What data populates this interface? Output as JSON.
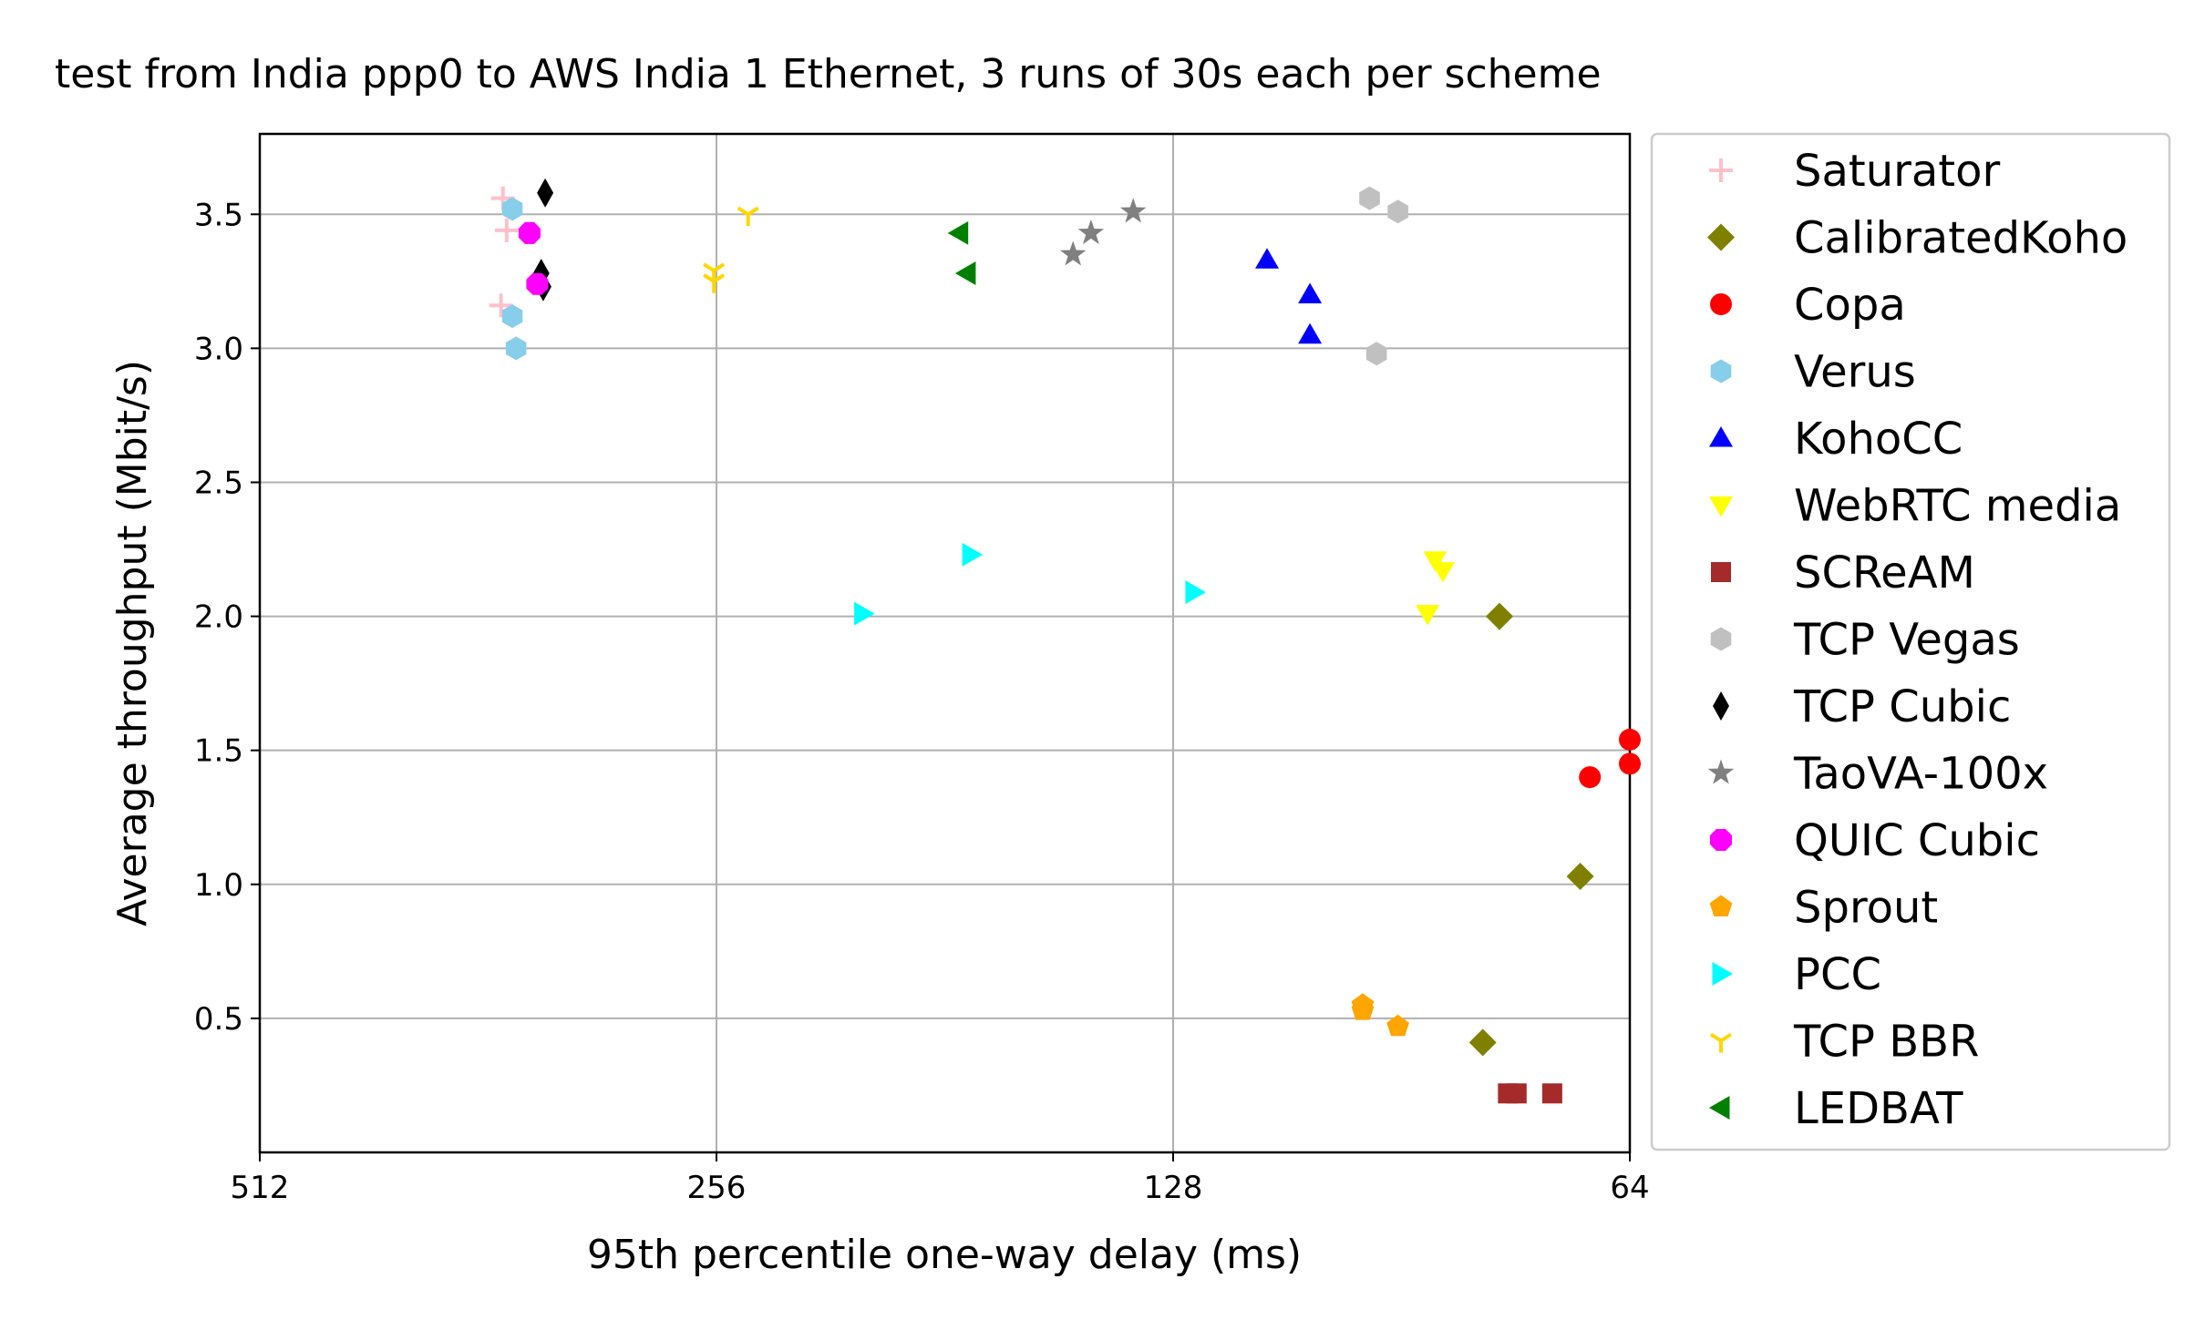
{
  "chart_data": {
    "type": "scatter",
    "title": "test from India ppp0 to AWS India 1 Ethernet, 3 runs of 30s each per scheme",
    "xlabel": "95th percentile one-way delay (ms)",
    "ylabel": "Average throughput (Mbit/s)",
    "x_scale": "log2",
    "x_inverted": true,
    "xlim": [
      512,
      64
    ],
    "ylim": [
      0,
      3.8
    ],
    "x_ticks": [
      512,
      256,
      128,
      64
    ],
    "x_tick_labels": [
      "512",
      "256",
      "128",
      "64"
    ],
    "y_ticks": [
      0.5,
      1.0,
      1.5,
      2.0,
      2.5,
      3.0,
      3.5
    ],
    "y_tick_labels": [
      "0.5",
      "1.0",
      "1.5",
      "2.0",
      "2.5",
      "3.0",
      "3.5"
    ],
    "grid": true,
    "legend_position": "outside right",
    "series": [
      {
        "name": "Saturator",
        "marker": "plus",
        "color": "#ffc0cb",
        "points": [
          [
            354,
            3.56
          ],
          [
            352,
            3.44
          ],
          [
            355,
            3.16
          ]
        ]
      },
      {
        "name": "CalibratedKoho",
        "marker": "diamond",
        "color": "#808000",
        "points": [
          [
            78,
            2.0
          ],
          [
            69,
            1.03
          ],
          [
            80,
            0.41
          ]
        ]
      },
      {
        "name": "Copa",
        "marker": "circle",
        "color": "#ff0000",
        "points": [
          [
            64,
            1.54
          ],
          [
            64,
            1.45
          ],
          [
            68,
            1.4
          ]
        ]
      },
      {
        "name": "Verus",
        "marker": "hexagon",
        "color": "#87ceeb",
        "points": [
          [
            349,
            3.52
          ],
          [
            349,
            3.12
          ],
          [
            347,
            3.0
          ]
        ]
      },
      {
        "name": "KohoCC",
        "marker": "triangle-up",
        "color": "#0000ff",
        "points": [
          [
            111,
            3.33
          ],
          [
            104,
            3.2
          ],
          [
            104,
            3.05
          ]
        ]
      },
      {
        "name": "WebRTC media",
        "marker": "triangle-down",
        "color": "#ffff00",
        "points": [
          [
            86,
            2.21
          ],
          [
            85,
            2.17
          ],
          [
            87,
            2.01
          ]
        ]
      },
      {
        "name": "SCReAM",
        "marker": "square",
        "color": "#a52a2a",
        "points": [
          [
            77,
            0.22
          ],
          [
            76,
            0.22
          ],
          [
            72,
            0.22
          ]
        ]
      },
      {
        "name": "TCP Vegas",
        "marker": "hexagon",
        "color": "#c0c0c0",
        "points": [
          [
            95,
            3.56
          ],
          [
            91,
            3.51
          ],
          [
            94,
            2.98
          ]
        ]
      },
      {
        "name": "TCP Cubic",
        "marker": "thin-diamond",
        "color": "#000000",
        "points": [
          [
            332,
            3.58
          ],
          [
            334,
            3.28
          ],
          [
            333,
            3.23
          ]
        ]
      },
      {
        "name": "TaoVA-100x",
        "marker": "star",
        "color": "#808080",
        "points": [
          [
            136,
            3.51
          ],
          [
            145,
            3.43
          ],
          [
            149,
            3.35
          ]
        ]
      },
      {
        "name": "QUIC Cubic",
        "marker": "octagon",
        "color": "#ff00ff",
        "points": [
          [
            340,
            3.43
          ],
          [
            336,
            3.24
          ]
        ]
      },
      {
        "name": "Sprout",
        "marker": "pentagon",
        "color": "#ffa500",
        "points": [
          [
            96,
            0.55
          ],
          [
            96,
            0.53
          ],
          [
            91,
            0.47
          ]
        ]
      },
      {
        "name": "PCC",
        "marker": "triangle-right",
        "color": "#00ffff",
        "points": [
          [
            205,
            2.01
          ],
          [
            174,
            2.23
          ],
          [
            124,
            2.09
          ]
        ]
      },
      {
        "name": "TCP BBR",
        "marker": "tri-down",
        "color": "#ffd700",
        "points": [
          [
            244,
            3.5
          ],
          [
            257,
            3.29
          ],
          [
            257,
            3.25
          ]
        ]
      },
      {
        "name": "LEDBAT",
        "marker": "triangle-left",
        "color": "#008000",
        "points": [
          [
            177,
            3.43
          ],
          [
            175,
            3.28
          ]
        ]
      }
    ]
  }
}
